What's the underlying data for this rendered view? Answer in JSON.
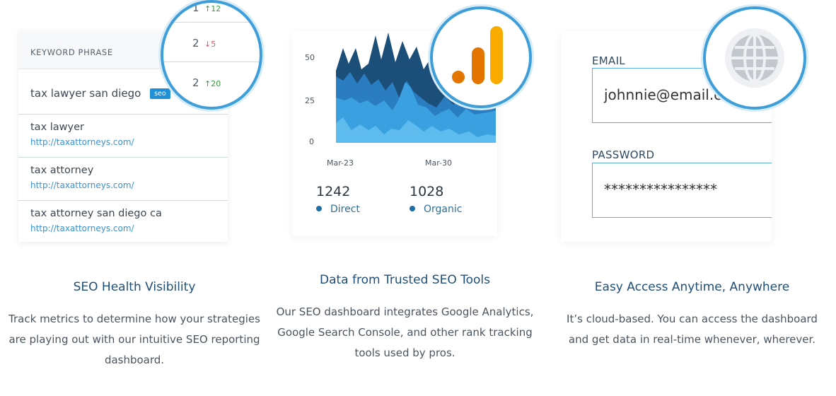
{
  "keywords": {
    "header": "KEYWORD PHRASE",
    "first_phrase": "tax lawyer san diego",
    "badge": "seo",
    "rows": [
      {
        "phrase": "tax lawyer",
        "url": "http://taxattorneys.com/"
      },
      {
        "phrase": "tax attorney",
        "url": "http://taxattorneys.com/"
      },
      {
        "phrase": "tax attorney san diego ca",
        "url": "http://taxattorneys.com/"
      }
    ],
    "ranks": [
      {
        "rank": "1",
        "change": "↑12",
        "dir": "up"
      },
      {
        "rank": "2",
        "change": "↓5",
        "dir": "down"
      },
      {
        "rank": "2",
        "change": "↑20",
        "dir": "up"
      }
    ]
  },
  "analytics": {
    "y_ticks": [
      "50",
      "25",
      "0"
    ],
    "x_ticks": [
      "Mar-23",
      "Mar-30"
    ],
    "metrics": [
      {
        "value": "1242",
        "label": "Direct"
      },
      {
        "value": "1028",
        "label": "Organic"
      }
    ],
    "logo": "google-analytics-logo",
    "colors": {
      "dark": "#1b4f7a",
      "mid": "#2a7dc0",
      "light": "#3aa0e0",
      "lightest": "#5dbbee"
    }
  },
  "login": {
    "email_label": "EMAIL",
    "email_value": "johnnie@email.c",
    "password_label": "PASSWORD",
    "password_value": "****************",
    "icon": "globe-icon"
  },
  "features": [
    {
      "title": "SEO Health Visibility",
      "lines": [
        "Track metrics to determine how your strategies",
        "are playing out with our intuitive SEO reporting",
        "dashboard."
      ]
    },
    {
      "title": "Data from Trusted SEO Tools",
      "lines": [
        "Our SEO dashboard integrates Google Analytics,",
        "Google Search Console, and other rank tracking",
        "tools used by pros."
      ]
    },
    {
      "title": "Easy Access Anytime, Anywhere",
      "lines": [
        "It’s cloud-based. You can access the dashboard",
        "and get data in real-time whenever, wherever."
      ]
    }
  ]
}
